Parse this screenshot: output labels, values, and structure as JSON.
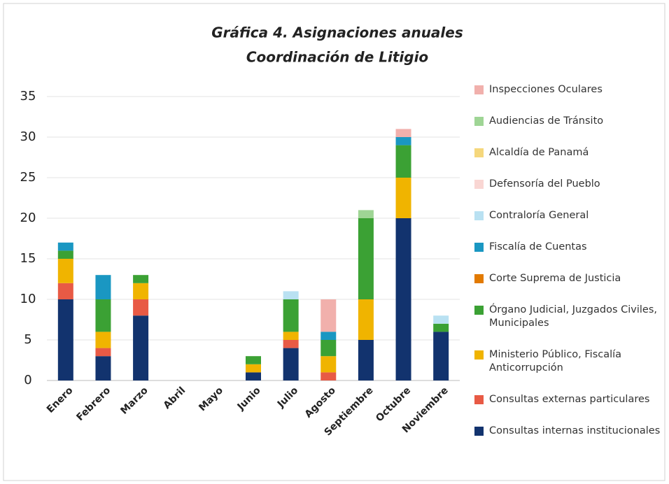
{
  "chart_data": {
    "type": "stacked_bar",
    "title": "Gráfica 4. Asignaciones anuales",
    "subtitle": "Coordinación de Litigio",
    "categories": [
      "Enero",
      "Febrero",
      "Marzo",
      "Abril",
      "Mayo",
      "Junio",
      "Julio",
      "Agosto",
      "Septiembre",
      "Octubre",
      "Noviembre"
    ],
    "series": [
      {
        "name": "Consultas internas institucionales",
        "color": "#12336e",
        "values": [
          10,
          3,
          8,
          0,
          0,
          1,
          4,
          0,
          5,
          20,
          6
        ]
      },
      {
        "name": "Consultas externas particulares",
        "color": "#e85a45",
        "values": [
          2,
          1,
          2,
          0,
          0,
          0,
          1,
          1,
          0,
          0,
          0
        ]
      },
      {
        "name": "Ministerio Público, Fiscalía Anticorrupción",
        "color": "#f0b400",
        "values": [
          3,
          2,
          2,
          0,
          0,
          1,
          1,
          2,
          5,
          5,
          0
        ]
      },
      {
        "name": "Órgano Judicial, Juzgados Civiles, Municipales",
        "color": "#3ba134",
        "values": [
          1,
          4,
          1,
          0,
          0,
          1,
          4,
          2,
          10,
          4,
          1
        ]
      },
      {
        "name": "Corte Suprema de Justicia",
        "color": "#e27a00",
        "values": [
          0,
          0,
          0,
          0,
          0,
          0,
          0,
          0,
          0,
          0,
          0
        ]
      },
      {
        "name": "Fiscalía de Cuentas",
        "color": "#1a97c2",
        "values": [
          1,
          3,
          0,
          0,
          0,
          0,
          0,
          1,
          0,
          1,
          0
        ]
      },
      {
        "name": "Contraloría General",
        "color": "#b9e1f2",
        "values": [
          0,
          0,
          0,
          0,
          0,
          0,
          1,
          0,
          0,
          0,
          1
        ]
      },
      {
        "name": "Defensoría del Pueblo",
        "color": "#f9d6d3",
        "values": [
          0,
          0,
          0,
          0,
          0,
          0,
          0,
          0,
          0,
          0,
          0
        ]
      },
      {
        "name": "Alcaldía de Panamá",
        "color": "#f5d77c",
        "values": [
          0,
          0,
          0,
          0,
          0,
          0,
          0,
          0,
          0,
          0,
          0
        ]
      },
      {
        "name": "Audiencias de Tránsito",
        "color": "#9fd595",
        "values": [
          0,
          0,
          0,
          0,
          0,
          0,
          0,
          0,
          1,
          0,
          0
        ]
      },
      {
        "name": "Inspecciones Oculares",
        "color": "#f1b0ac",
        "values": [
          0,
          0,
          0,
          0,
          0,
          0,
          0,
          4,
          0,
          1,
          0
        ]
      }
    ],
    "ylim": [
      0,
      35
    ],
    "yticks": [
      0,
      5,
      10,
      15,
      20,
      25,
      30,
      35
    ],
    "legend": "right"
  }
}
